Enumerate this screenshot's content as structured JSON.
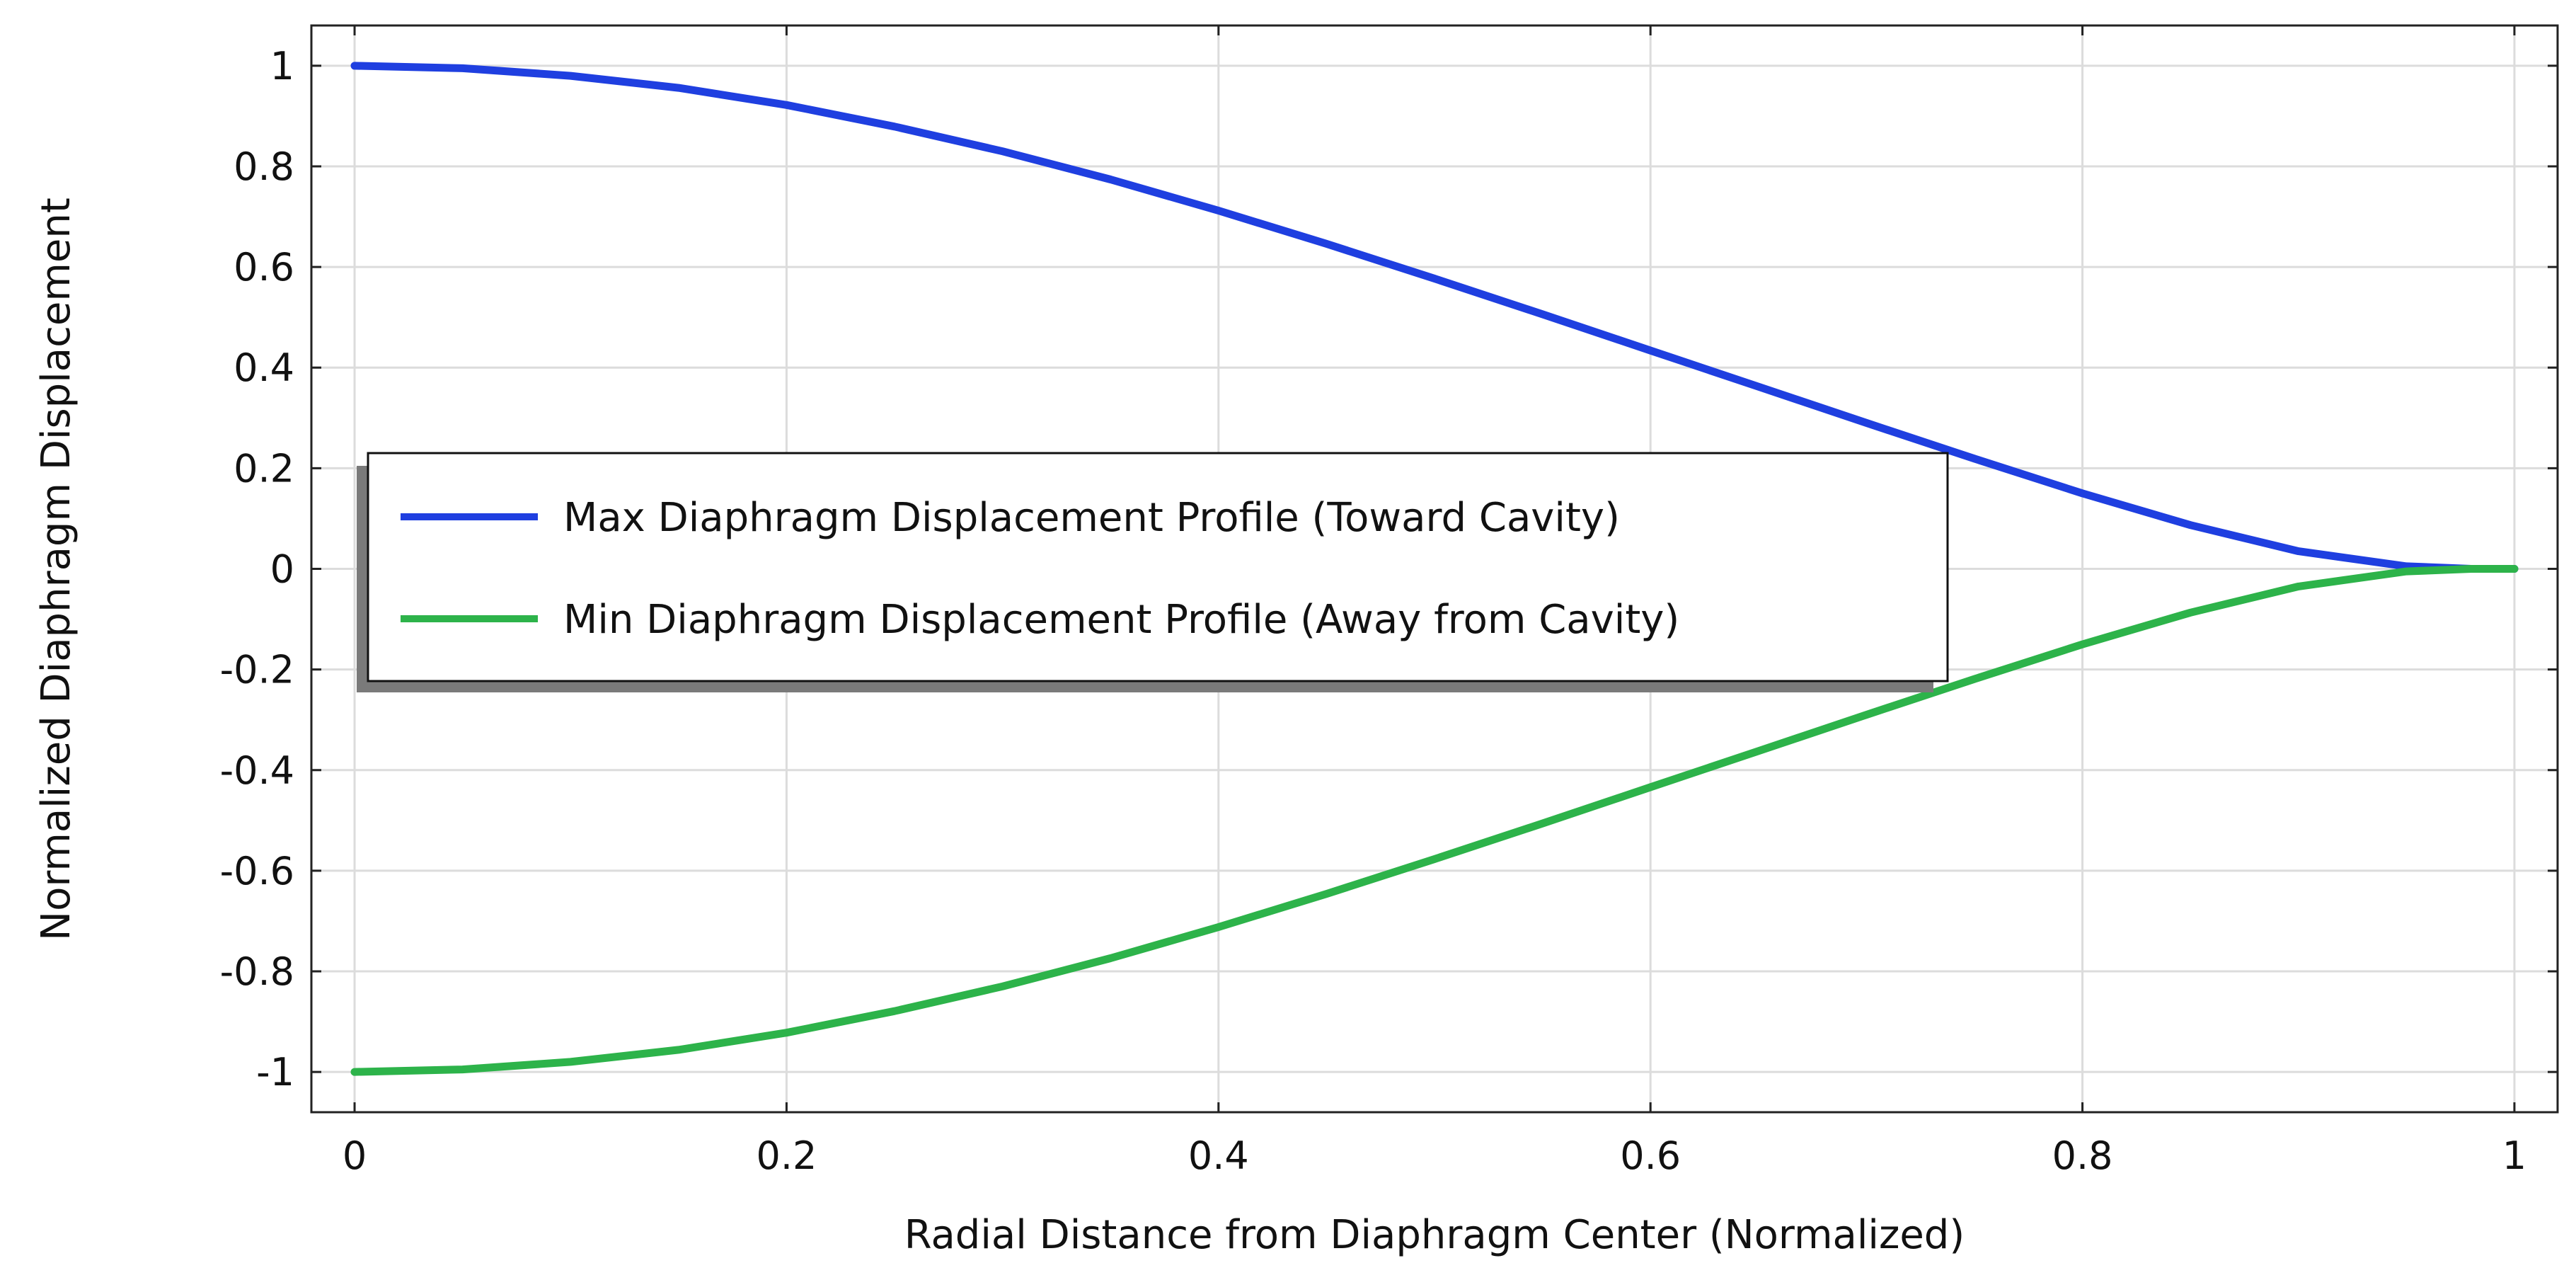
{
  "chart_data": {
    "type": "line",
    "title": "",
    "xlabel": "Radial Distance from Diaphragm Center (Normalized)",
    "ylabel": "Normalized Diaphragm Displacement",
    "xlim": [
      -0.02,
      1.02
    ],
    "ylim": [
      -1.08,
      1.08
    ],
    "grid": true,
    "legend_position": "center-left",
    "x_ticks": [
      "0",
      "0.2",
      "0.4",
      "0.6",
      "0.8",
      "1"
    ],
    "y_ticks": [
      "1",
      "0.8",
      "0.6",
      "0.4",
      "0.2",
      "0",
      "-0.2",
      "-0.4",
      "-0.6",
      "-0.8",
      "-1"
    ],
    "x": [
      0,
      0.05,
      0.1,
      0.15,
      0.2,
      0.25,
      0.3,
      0.35,
      0.4,
      0.45,
      0.5,
      0.55,
      0.6,
      0.65,
      0.7,
      0.75,
      0.8,
      0.85,
      0.9,
      0.95,
      0.98,
      1.0
    ],
    "series": [
      {
        "name": "Max Diaphragm Displacement Profile (Toward Cavity)",
        "color": "#1f3fe0",
        "values": [
          1.0,
          0.995,
          0.98,
          0.956,
          0.922,
          0.879,
          0.83,
          0.774,
          0.712,
          0.646,
          0.577,
          0.506,
          0.434,
          0.362,
          0.29,
          0.219,
          0.15,
          0.087,
          0.035,
          0.005,
          0.0,
          0.0
        ]
      },
      {
        "name": "Min Diaphragm Displacement Profile (Away from Cavity)",
        "color": "#2db34a",
        "values": [
          -1.0,
          -0.995,
          -0.98,
          -0.956,
          -0.922,
          -0.879,
          -0.83,
          -0.774,
          -0.712,
          -0.646,
          -0.577,
          -0.506,
          -0.434,
          -0.362,
          -0.29,
          -0.219,
          -0.15,
          -0.087,
          -0.035,
          -0.005,
          0.0,
          0.0
        ]
      }
    ]
  }
}
